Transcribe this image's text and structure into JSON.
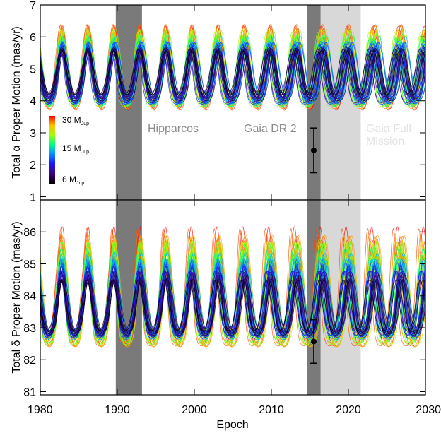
{
  "figure": {
    "xlabel": "Epoch",
    "region_labels": {
      "hipparcos": "Hipparcos",
      "gaia_dr2": "Gaia DR 2",
      "gaia_full_line1": "Gaia Full",
      "gaia_full_line2": "Mission"
    },
    "colorbar": {
      "label_top": "30 M",
      "label_mid": "15 M",
      "label_bot": "6 M",
      "subscript": "Jup",
      "range": [
        6,
        30
      ],
      "ticks": [
        6,
        15,
        30
      ]
    }
  },
  "chart_data": [
    {
      "type": "line",
      "panel": "top",
      "ylabel": "Total α Proper Motion (mas/yr)",
      "xlim": [
        1980,
        2030
      ],
      "ylim": [
        0.9,
        7.0
      ],
      "xticks": [
        1980,
        1990,
        2000,
        2010,
        2020,
        2030
      ],
      "yticks": [
        1,
        2,
        3,
        4,
        5,
        6,
        7
      ],
      "shaded_regions": [
        {
          "name": "Hipparcos",
          "x": [
            1989.8,
            1993.2
          ],
          "color": "#7a7a7a"
        },
        {
          "name": "Gaia DR 2",
          "x": [
            2014.6,
            2016.4
          ],
          "color": "#7a7a7a"
        },
        {
          "name": "Gaia Full Mission",
          "x": [
            2016.4,
            2021.6
          ],
          "color": "#d8d8d8"
        }
      ],
      "orbit_model": {
        "period_yr": 3.37,
        "first_peak": 1982.8,
        "baseline": 4.3,
        "amplitude": [
          1.2,
          2.4
        ],
        "peak_width": 0.25,
        "n_curves": 60
      },
      "measurement": {
        "x": 2015.5,
        "y": 2.45,
        "yerr": [
          0.7,
          0.7
        ]
      }
    },
    {
      "type": "line",
      "panel": "bottom",
      "ylabel": "Total δ Proper Motion (mas/yr)",
      "xlim": [
        1980,
        2030
      ],
      "ylim": [
        80.9,
        87.0
      ],
      "xticks": [
        1980,
        1990,
        2000,
        2010,
        2020,
        2030
      ],
      "yticks": [
        81,
        82,
        83,
        84,
        85,
        86
      ],
      "shaded_regions": [
        {
          "name": "Hipparcos",
          "x": [
            1989.8,
            1993.2
          ],
          "color": "#7a7a7a"
        },
        {
          "name": "Gaia DR 2",
          "x": [
            2014.6,
            2016.4
          ],
          "color": "#7a7a7a"
        },
        {
          "name": "Gaia Full Mission",
          "x": [
            2016.4,
            2021.6
          ],
          "color": "#d8d8d8"
        }
      ],
      "orbit_model": {
        "period_yr": 3.37,
        "first_peak": 1982.8,
        "baseline": 83.1,
        "amplitude": [
          1.4,
          3.5
        ],
        "peak_width": 0.25,
        "n_curves": 60
      },
      "measurement": {
        "x": 2015.5,
        "y": 82.57,
        "yerr": [
          0.68,
          0.68
        ]
      }
    }
  ]
}
